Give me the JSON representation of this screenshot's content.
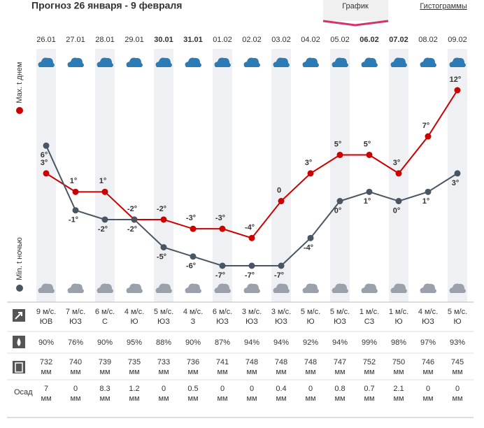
{
  "header": {
    "title": "Прогноз 26 января - 9 февраля",
    "tabs": [
      "График",
      "Гистограммы"
    ]
  },
  "chart_data": {
    "type": "line",
    "categories": [
      "26.01",
      "27.01",
      "28.01",
      "29.01",
      "30.01",
      "31.01",
      "01.02",
      "02.02",
      "03.02",
      "04.02",
      "05.02",
      "06.02",
      "07.02",
      "08.02",
      "09.02"
    ],
    "category_colors": [
      "#333",
      "#333",
      "#333",
      "#333",
      "#c0392b",
      "#c0392b",
      "#333",
      "#333",
      "#333",
      "#333",
      "#333",
      "#c0392b",
      "#c0392b",
      "#333",
      "#333"
    ],
    "series": [
      {
        "name": "Max. t днем",
        "color": "#cc0000",
        "values": [
          3,
          1,
          1,
          -2,
          -2,
          -3,
          -3,
          -4,
          0,
          3,
          5,
          5,
          3,
          7,
          12
        ],
        "value_labels": [
          "3°",
          "1°",
          "1°",
          "-2°",
          "-2°",
          "-3°",
          "-3°",
          "-4°",
          "0",
          "3°",
          "5°",
          "5°",
          "3°",
          "7°",
          "12°"
        ]
      },
      {
        "name": "Min. t ночью",
        "color": "#4a5563",
        "values": [
          6,
          -1,
          -2,
          -2,
          -5,
          -6,
          -7,
          -7,
          -7,
          -4,
          0,
          1,
          0,
          1,
          3
        ],
        "value_labels": [
          "6°",
          "-1°",
          "-2°",
          "-2°",
          "-5°",
          "-6°",
          "-7°",
          "-7°",
          "-7°",
          "-4°",
          "0°",
          "1°",
          "0°",
          "1°",
          "3°"
        ]
      }
    ]
  },
  "table": {
    "precip_label": "Осад",
    "wind_speed": [
      "9 м/с.",
      "7 м/с.",
      "6 м/с.",
      "4 м/с.",
      "5 м/с.",
      "4 м/с.",
      "6 м/с.",
      "3 м/с.",
      "3 м/с.",
      "5 м/с.",
      "5 м/с.",
      "1 м/с.",
      "1 м/с.",
      "4 м/с.",
      "5 м/с."
    ],
    "wind_dir": [
      "ЮВ",
      "ЮЗ",
      "С",
      "Ю",
      "ЮЗ",
      "З",
      "ЮЗ",
      "ЮЗ",
      "ЮЗ",
      "Ю",
      "ЮЗ",
      "СЗ",
      "Ю",
      "ЮЗ",
      "Ю"
    ],
    "humidity": [
      "90%",
      "76%",
      "90%",
      "95%",
      "88%",
      "90%",
      "87%",
      "94%",
      "94%",
      "92%",
      "94%",
      "99%",
      "98%",
      "97%",
      "93%"
    ],
    "pressure": [
      "732",
      "740",
      "739",
      "735",
      "733",
      "736",
      "741",
      "748",
      "748",
      "748",
      "747",
      "752",
      "750",
      "746",
      "745"
    ],
    "precip": [
      "7",
      "0",
      "8.3",
      "1.2",
      "0",
      "0.5",
      "0",
      "0",
      "0.4",
      "0",
      "0.8",
      "0.7",
      "2.1",
      "0",
      "0"
    ],
    "unit": "мм"
  }
}
